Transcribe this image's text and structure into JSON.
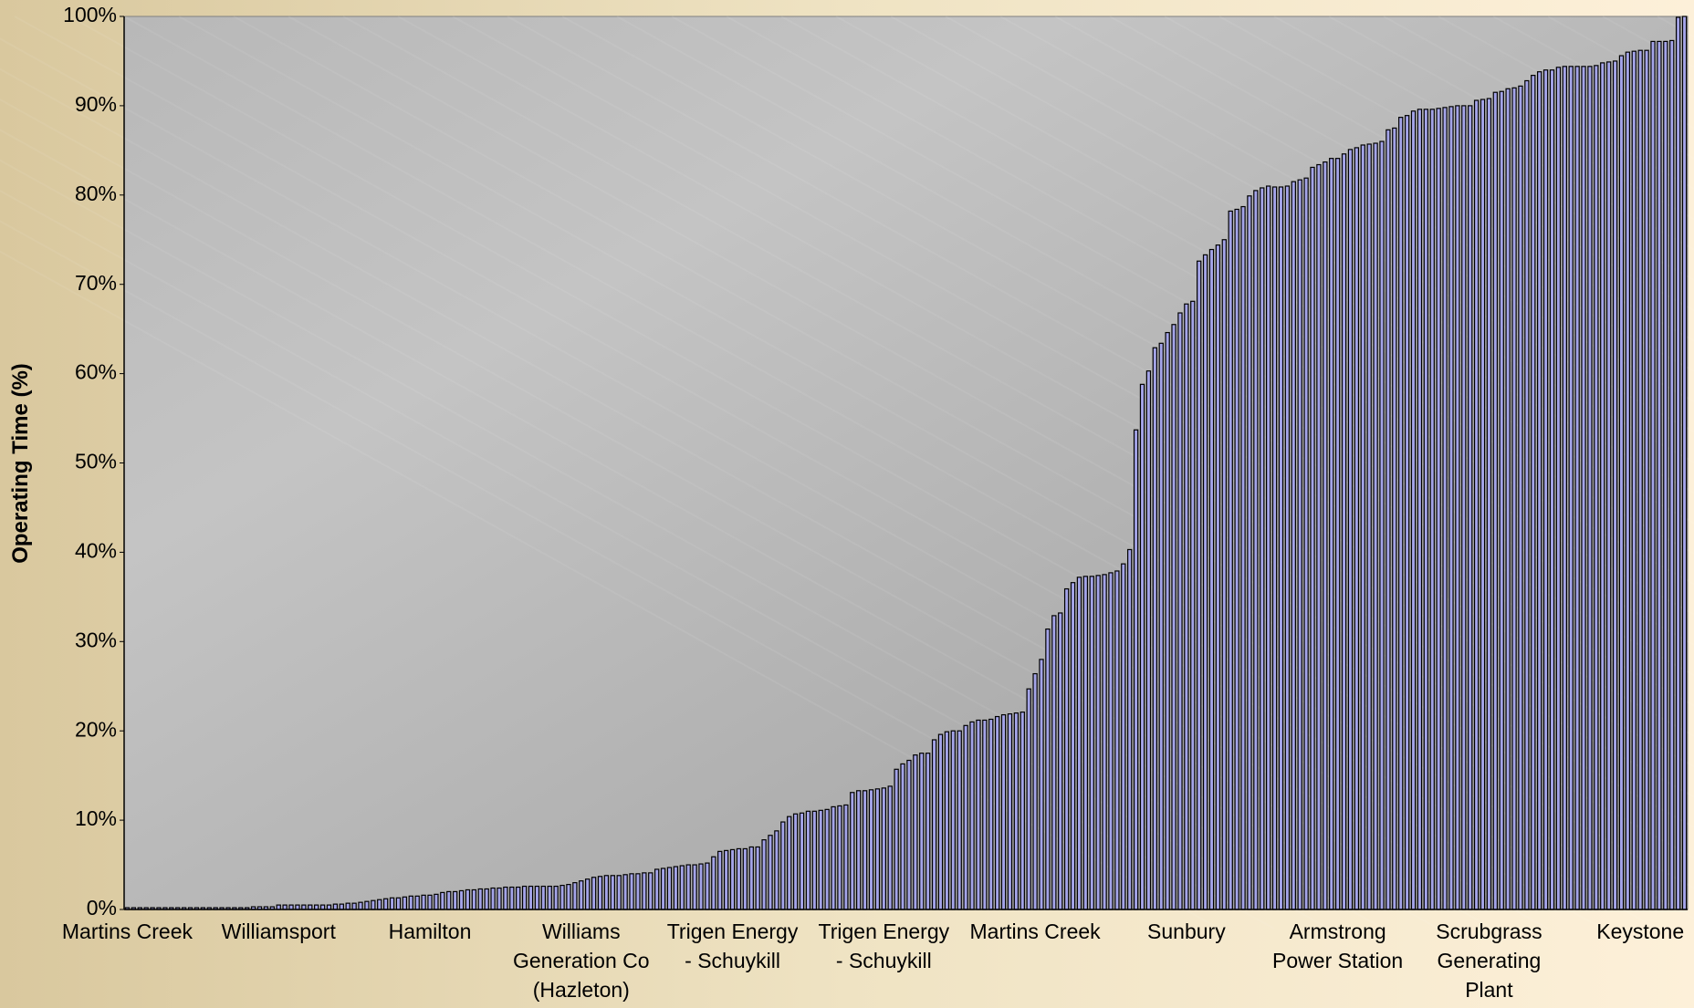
{
  "chart_data": {
    "type": "bar",
    "y_label": "Operating Time (%)",
    "categories": [
      "Martins Creek",
      null,
      null,
      null,
      null,
      null,
      null,
      null,
      null,
      null,
      null,
      null,
      null,
      null,
      null,
      null,
      null,
      null,
      null,
      null,
      null,
      null,
      null,
      null,
      "Williamsport",
      null,
      null,
      null,
      null,
      null,
      null,
      null,
      null,
      null,
      null,
      null,
      null,
      null,
      null,
      null,
      null,
      null,
      null,
      null,
      null,
      null,
      null,
      null,
      "Hamilton",
      null,
      null,
      null,
      null,
      null,
      null,
      null,
      null,
      null,
      null,
      null,
      null,
      null,
      null,
      null,
      null,
      null,
      null,
      null,
      null,
      null,
      null,
      null,
      "Williams Generation Co (Hazleton)",
      null,
      null,
      null,
      null,
      null,
      null,
      null,
      null,
      null,
      null,
      null,
      null,
      null,
      null,
      null,
      null,
      null,
      null,
      null,
      null,
      null,
      null,
      null,
      "Trigen Energy - Schuykill",
      null,
      null,
      null,
      null,
      null,
      null,
      null,
      null,
      null,
      null,
      null,
      null,
      null,
      null,
      null,
      null,
      null,
      null,
      null,
      null,
      null,
      null,
      null,
      "Trigen Energy - Schuykill",
      null,
      null,
      null,
      null,
      null,
      null,
      null,
      null,
      null,
      null,
      null,
      null,
      null,
      null,
      null,
      null,
      null,
      null,
      null,
      null,
      null,
      null,
      null,
      "Martins Creek",
      null,
      null,
      null,
      null,
      null,
      null,
      null,
      null,
      null,
      null,
      null,
      null,
      null,
      null,
      null,
      null,
      null,
      null,
      null,
      null,
      null,
      null,
      null,
      "Sunbury",
      null,
      null,
      null,
      null,
      null,
      null,
      null,
      null,
      null,
      null,
      null,
      null,
      null,
      null,
      null,
      null,
      null,
      null,
      null,
      null,
      null,
      null,
      null,
      "Armstrong Power Station",
      null,
      null,
      null,
      null,
      null,
      null,
      null,
      null,
      null,
      null,
      null,
      null,
      null,
      null,
      null,
      null,
      null,
      null,
      null,
      null,
      null,
      null,
      null,
      "Scrubgrass Generating Plant",
      null,
      null,
      null,
      null,
      null,
      null,
      null,
      null,
      null,
      null,
      null,
      null,
      null,
      null,
      null,
      null,
      null,
      null,
      null,
      null,
      null,
      null,
      null,
      "Keystone",
      null,
      null,
      null,
      null,
      null,
      null,
      null
    ],
    "values": [
      0.2,
      0.2,
      0.2,
      0.2,
      0.2,
      0.2,
      0.2,
      0.2,
      0.2,
      0.2,
      0.2,
      0.2,
      0.2,
      0.2,
      0.2,
      0.2,
      0.2,
      0.2,
      0.2,
      0.2,
      0.3,
      0.3,
      0.3,
      0.3,
      0.5,
      0.5,
      0.5,
      0.5,
      0.5,
      0.5,
      0.5,
      0.5,
      0.5,
      0.6,
      0.6,
      0.7,
      0.7,
      0.8,
      0.9,
      1.0,
      1.1,
      1.2,
      1.3,
      1.3,
      1.4,
      1.5,
      1.5,
      1.6,
      1.6,
      1.7,
      1.9,
      2.0,
      2.0,
      2.1,
      2.2,
      2.2,
      2.3,
      2.3,
      2.4,
      2.4,
      2.5,
      2.5,
      2.5,
      2.6,
      2.6,
      2.6,
      2.6,
      2.6,
      2.6,
      2.7,
      2.8,
      3.0,
      3.2,
      3.4,
      3.6,
      3.7,
      3.8,
      3.8,
      3.8,
      3.9,
      4.0,
      4.0,
      4.1,
      4.1,
      4.5,
      4.6,
      4.7,
      4.8,
      4.9,
      5.0,
      5.0,
      5.1,
      5.2,
      5.9,
      6.5,
      6.6,
      6.7,
      6.8,
      6.8,
      7.0,
      7.0,
      7.8,
      8.3,
      8.8,
      9.8,
      10.4,
      10.7,
      10.8,
      11.0,
      11.0,
      11.1,
      11.2,
      11.5,
      11.6,
      11.7,
      13.1,
      13.3,
      13.3,
      13.4,
      13.5,
      13.6,
      13.8,
      15.7,
      16.3,
      16.7,
      17.3,
      17.5,
      17.5,
      19.0,
      19.6,
      19.9,
      20.0,
      20.0,
      20.6,
      21.0,
      21.2,
      21.2,
      21.3,
      21.6,
      21.8,
      21.9,
      22.0,
      22.1,
      24.7,
      26.4,
      28.0,
      31.4,
      32.9,
      33.2,
      35.9,
      36.6,
      37.2,
      37.3,
      37.3,
      37.4,
      37.5,
      37.7,
      37.9,
      38.7,
      40.3,
      53.7,
      58.8,
      60.3,
      62.9,
      63.4,
      64.6,
      65.5,
      66.8,
      67.8,
      68.1,
      72.6,
      73.3,
      73.9,
      74.4,
      75.0,
      78.2,
      78.4,
      78.7,
      79.9,
      80.5,
      80.8,
      81.0,
      80.9,
      80.9,
      81.0,
      81.5,
      81.7,
      81.9,
      83.1,
      83.4,
      83.7,
      84.1,
      84.1,
      84.6,
      85.1,
      85.3,
      85.6,
      85.7,
      85.8,
      86.0,
      87.3,
      87.5,
      88.7,
      88.9,
      89.4,
      89.6,
      89.6,
      89.6,
      89.7,
      89.8,
      89.9,
      90.0,
      90.0,
      90.0,
      90.6,
      90.7,
      90.8,
      91.5,
      91.6,
      91.9,
      92.0,
      92.2,
      92.8,
      93.4,
      93.8,
      94.0,
      94.0,
      94.3,
      94.4,
      94.4,
      94.4,
      94.4,
      94.4,
      94.5,
      94.8,
      94.9,
      95.0,
      95.6,
      96.0,
      96.1,
      96.2,
      96.2,
      97.2,
      97.2,
      97.2,
      97.3,
      99.9,
      100
    ],
    "color": "#a4a4e8",
    "ylim": [
      0,
      100
    ],
    "yticks": [
      {
        "value": 0,
        "label": "0%"
      },
      {
        "value": 10,
        "label": "10%"
      },
      {
        "value": 20,
        "label": "20%"
      },
      {
        "value": 30,
        "label": "30%"
      },
      {
        "value": 40,
        "label": "40%"
      },
      {
        "value": 50,
        "label": "50%"
      },
      {
        "value": 60,
        "label": "60%"
      },
      {
        "value": 70,
        "label": "70%"
      },
      {
        "value": 80,
        "label": "80%"
      },
      {
        "value": 90,
        "label": "90%"
      },
      {
        "value": 100,
        "label": "100%"
      }
    ],
    "grid": false
  }
}
